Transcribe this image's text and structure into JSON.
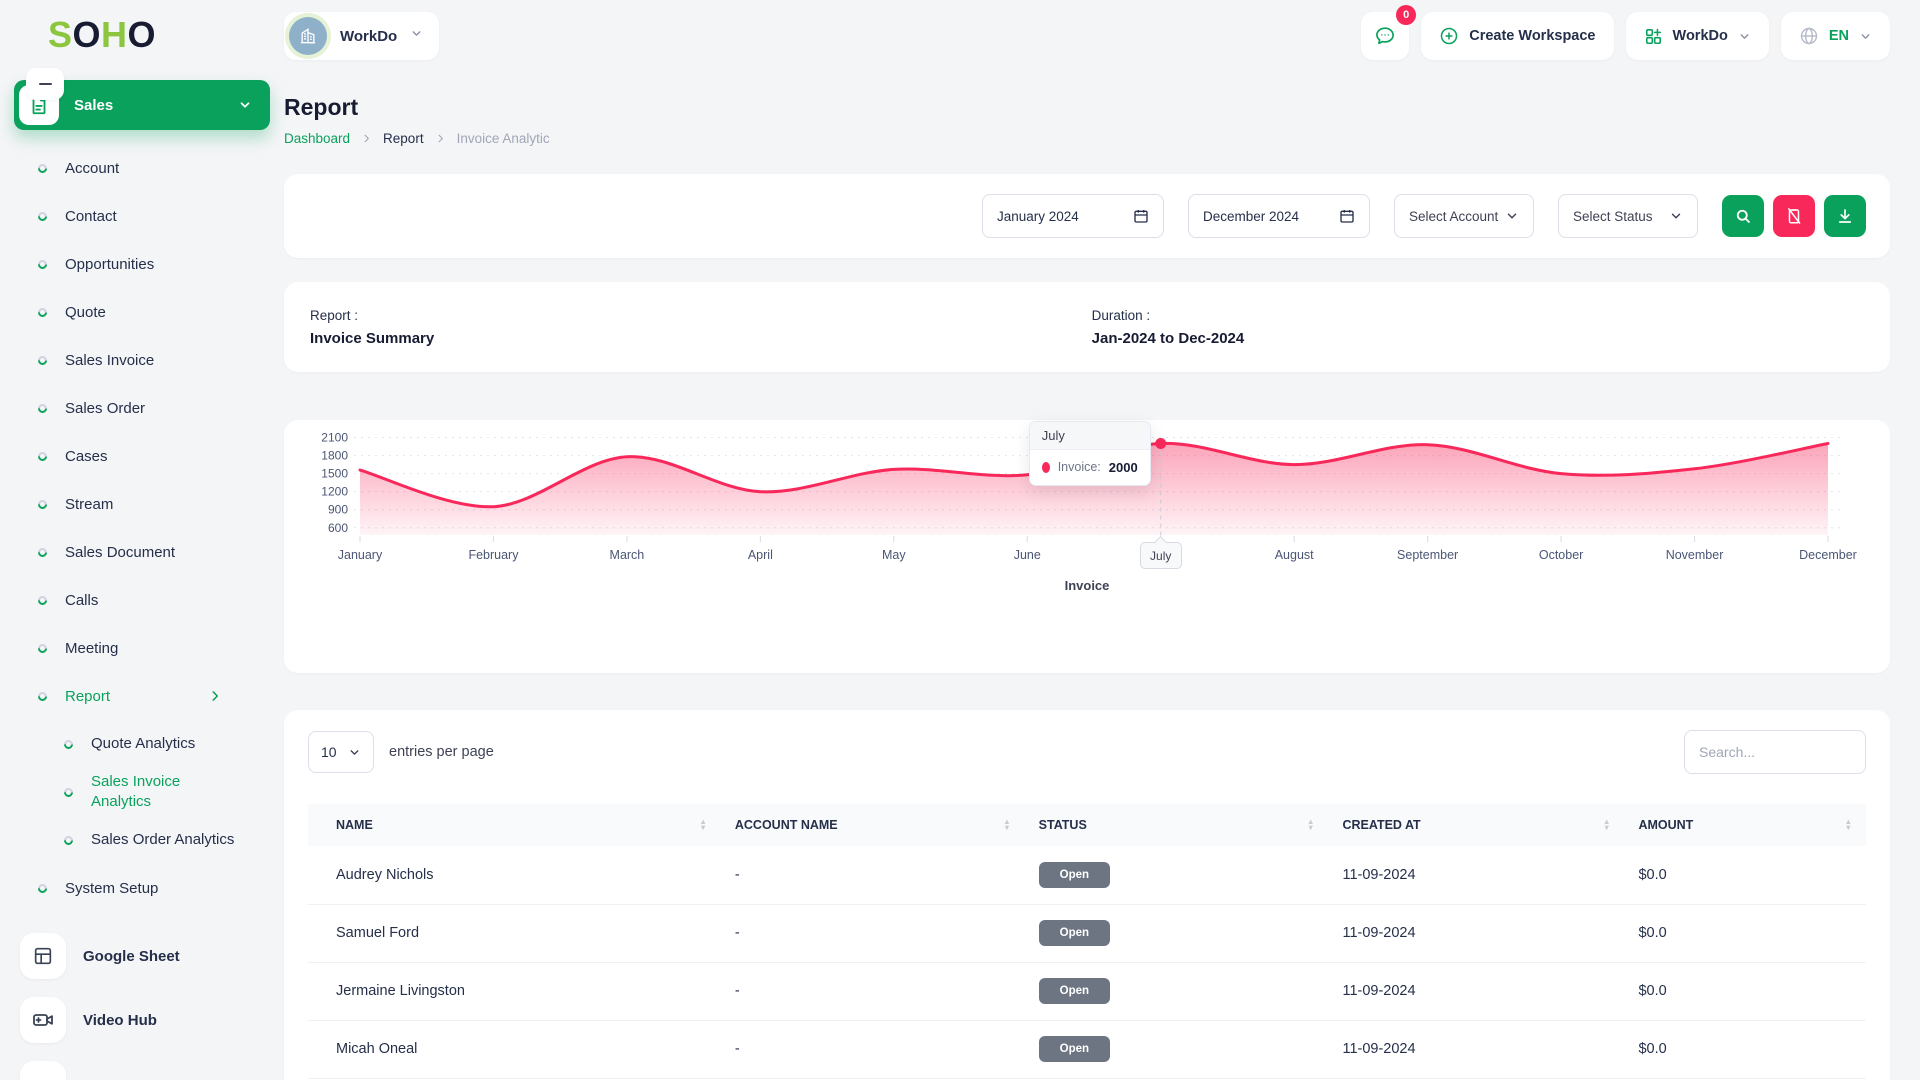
{
  "brand": {
    "logo_text": "SOHO"
  },
  "header": {
    "workspace_label": "WorkDo",
    "chat_badge": "0",
    "create_label": "Create Workspace",
    "app_label": "WorkDo",
    "lang": "EN",
    "icons": [
      "chat-icon",
      "plus-circle-icon",
      "grid-plus-icon",
      "globe-icon",
      "chevron-down-icon"
    ]
  },
  "sidebar": {
    "parent": "Sales",
    "parent_icon": "document-icon",
    "items": [
      "Account",
      "Contact",
      "Opportunities",
      "Quote",
      "Sales Invoice",
      "Sales Order",
      "Cases",
      "Stream",
      "Sales Document",
      "Calls",
      "Meeting"
    ],
    "report": {
      "label": "Report"
    },
    "report_children": [
      {
        "label": "Quote Analytics",
        "active": false
      },
      {
        "label": "Sales Invoice Analytics",
        "active": true
      },
      {
        "label": "Sales Order Analytics",
        "active": false
      }
    ],
    "system_setup": "System Setup",
    "apps": [
      {
        "label": "Google Sheet",
        "icon": "sheet"
      },
      {
        "label": "Video Hub",
        "icon": "video"
      }
    ]
  },
  "page": {
    "title": "Report",
    "breadcrumb": [
      "Dashboard",
      "Report",
      "Invoice Analytic"
    ]
  },
  "filters": {
    "from": "January 2024",
    "to": "December 2024",
    "account_placeholder": "Select Account",
    "status_placeholder": "Select Status",
    "buttons": [
      "search-button",
      "reset-button",
      "download-button"
    ]
  },
  "summary": {
    "report_label": "Report :",
    "report_value": "Invoice Summary",
    "duration_label": "Duration :",
    "duration_value": "Jan-2024 to Dec-2024"
  },
  "chart_data": {
    "type": "area",
    "x": [
      "January",
      "February",
      "March",
      "April",
      "May",
      "June",
      "July",
      "August",
      "September",
      "October",
      "November",
      "December"
    ],
    "series": [
      {
        "name": "Invoice",
        "values": [
          1560,
          950,
          1780,
          1200,
          1570,
          1480,
          2000,
          1650,
          1980,
          1500,
          1580,
          2000
        ]
      }
    ],
    "yticks": [
      600,
      900,
      1200,
      1500,
      1800,
      2100
    ],
    "ylim": [
      480,
      2200
    ],
    "line_color": "#F8285A",
    "grid": "dashed-horizontal",
    "legend": "Invoice",
    "legend_position": "bottom-center",
    "highlight_index": 6,
    "tooltip": {
      "title": "July",
      "label": "Invoice:",
      "value": "2000"
    }
  },
  "table": {
    "entries_value": "10",
    "entries_label": "entries per page",
    "search_placeholder": "Search...",
    "columns": [
      "NAME",
      "ACCOUNT NAME",
      "STATUS",
      "CREATED AT",
      "AMOUNT"
    ],
    "rows": [
      {
        "name": "Audrey Nichols",
        "account": "-",
        "status": "Open",
        "created": "11-09-2024",
        "amount": "$0.0"
      },
      {
        "name": "Samuel Ford",
        "account": "-",
        "status": "Open",
        "created": "11-09-2024",
        "amount": "$0.0"
      },
      {
        "name": "Jermaine Livingston",
        "account": "-",
        "status": "Open",
        "created": "11-09-2024",
        "amount": "$0.0"
      },
      {
        "name": "Micah Oneal",
        "account": "-",
        "status": "Open",
        "created": "11-09-2024",
        "amount": "$0.0"
      }
    ]
  }
}
